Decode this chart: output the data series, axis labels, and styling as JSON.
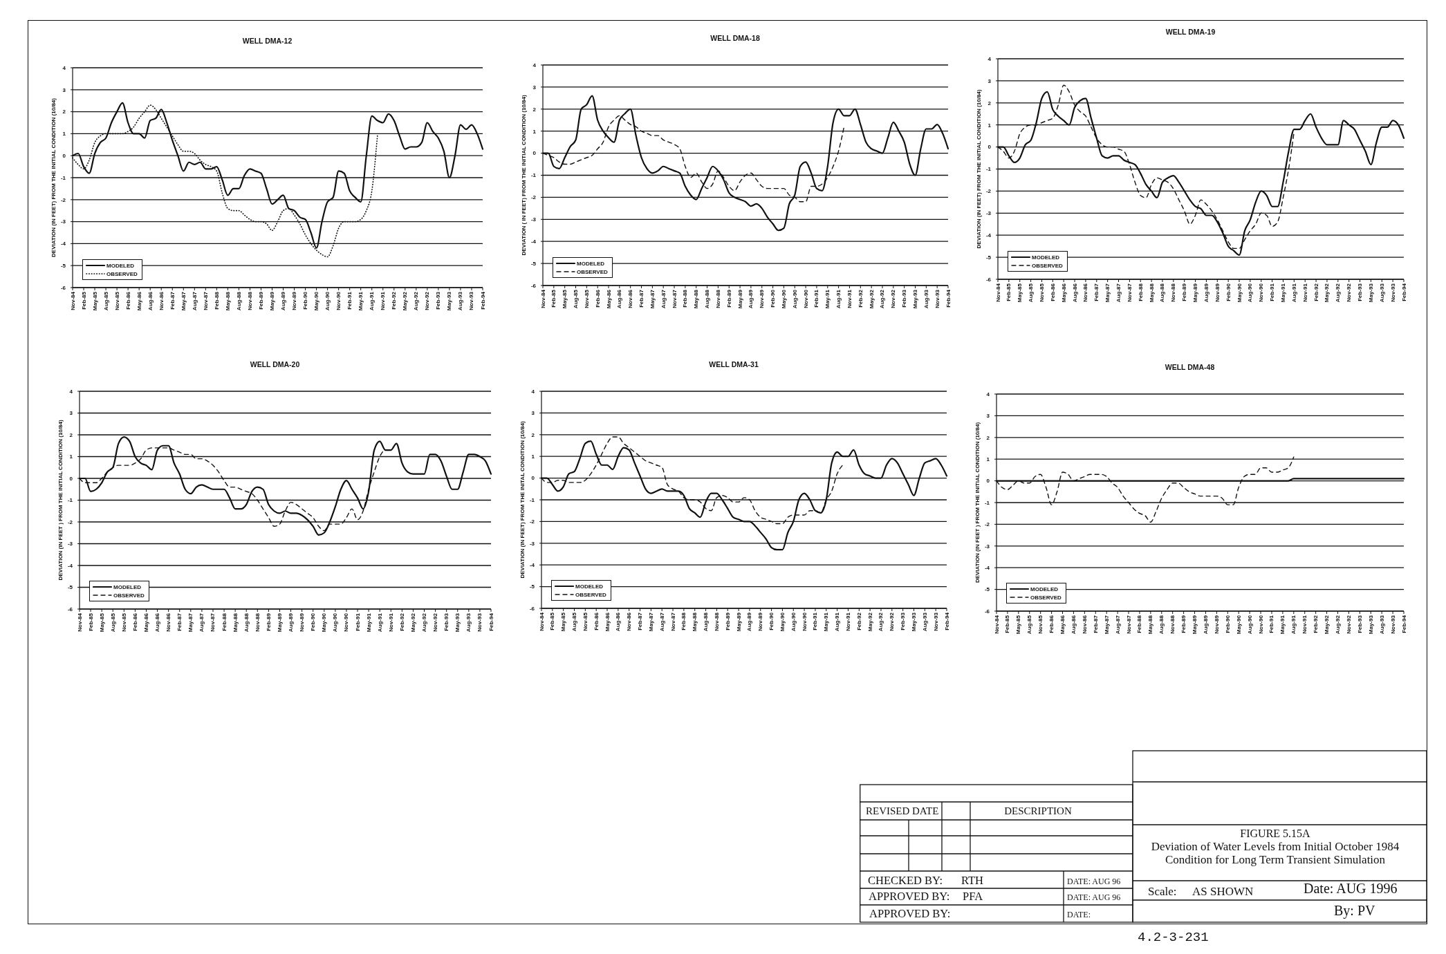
{
  "chart_data": [
    {
      "type": "line",
      "title": "WELL DMA-12",
      "ylabel": "DEVIATION (IN FEET) FROM THE INITIAL CONDITION (10/84)",
      "categories": [
        "Nov-84",
        null,
        "Feb-85",
        null,
        "May-85",
        null,
        "Aug-85",
        null,
        "Nov-85",
        null,
        "Feb-86",
        null,
        "May-86",
        null,
        "Aug-86",
        null,
        "Nov-86",
        null,
        "Feb-87",
        null,
        "May-87",
        null,
        "Aug-87",
        null,
        "Nov-87",
        null,
        "Feb-88",
        null,
        "May-88",
        null,
        "Aug-88",
        null,
        "Nov-88",
        null,
        "Feb-89",
        null,
        "May-89",
        null,
        "Aug-89",
        null,
        "Nov-89",
        null,
        "Feb-90",
        null,
        "May-90",
        null,
        "Aug-90",
        null,
        "Nov-90",
        null,
        "Feb-91",
        null,
        "May-91",
        null,
        "Aug-91",
        null,
        "Nov-91",
        null,
        "Feb-92",
        null,
        "May-92",
        null,
        "Aug-92",
        null,
        "Nov-92",
        null,
        "Feb-93",
        null,
        "May-93",
        null,
        "Aug-93",
        null,
        "Nov-93",
        null,
        "Feb-94"
      ],
      "ylim": [
        -6,
        4
      ],
      "yticks": [
        -6,
        -5,
        -4,
        -3,
        -2,
        -1,
        0,
        1,
        2,
        3,
        4
      ],
      "grid": "y",
      "legend": "bottom left",
      "marker": "none",
      "series": [
        {
          "name": "MODELED",
          "color": "#111111",
          "line_style": "solid",
          "values": [
            0.0,
            0.1,
            -0.5,
            -0.8,
            0.1,
            0.6,
            0.8,
            1.5,
            2.0,
            2.4,
            1.5,
            1.0,
            1.0,
            0.8,
            1.6,
            1.7,
            2.1,
            1.5,
            0.7,
            0.0,
            -0.7,
            -0.3,
            -0.4,
            -0.3,
            -0.6,
            -0.6,
            -0.5,
            -1.1,
            -1.8,
            -1.5,
            -1.5,
            -0.9,
            -0.6,
            -0.7,
            -0.8,
            -1.5,
            -2.2,
            -2.0,
            -1.8,
            -2.4,
            -2.5,
            -2.8,
            -2.9,
            -3.5,
            -4.2,
            -3.0,
            -2.1,
            -1.9,
            -0.7,
            -0.8,
            -1.6,
            -1.9,
            -2.1,
            0.0,
            1.8,
            1.6,
            1.5,
            1.9,
            1.6,
            0.9,
            0.3,
            0.4,
            0.4,
            0.6,
            1.5,
            1.1,
            0.8,
            0.2,
            -1.0,
            0.0,
            1.4,
            1.2,
            1.4,
            1.0,
            0.3
          ]
        },
        {
          "name": "OBSERVED",
          "color": "#111111",
          "line_style": "dotted",
          "values": [
            -0.1,
            -0.4,
            -0.6,
            -0.2,
            0.6,
            0.9,
            1.0,
            1.0,
            1.0,
            1.0,
            1.1,
            1.3,
            1.7,
            2.0,
            2.3,
            2.1,
            1.7,
            1.3,
            0.9,
            0.5,
            0.2,
            0.2,
            0.1,
            -0.2,
            -0.4,
            -0.5,
            -0.7,
            -1.7,
            -2.4,
            -2.5,
            -2.5,
            -2.7,
            -2.9,
            -3.0,
            -3.0,
            -3.1,
            -3.4,
            -3.0,
            -2.5,
            -2.4,
            -2.7,
            -3.1,
            -3.6,
            -4.0,
            -4.3,
            -4.5,
            -4.6,
            -4.1,
            -3.3,
            -3.0,
            -3.0,
            -3.0,
            -2.9,
            -2.5,
            -1.6,
            0.9,
            null,
            null,
            null,
            null,
            null,
            null,
            null,
            null,
            null,
            null,
            null,
            null,
            null,
            null,
            null,
            null,
            null,
            null,
            null
          ]
        }
      ]
    },
    {
      "type": "line",
      "title": "WELL DMA-18",
      "ylabel": "DEVIATION ( IN FEET) FROM THE INITIAL CONDITION (10/84)",
      "categories": [
        "Nov-84",
        null,
        "Feb-85",
        null,
        "May-85",
        null,
        "Aug-85",
        null,
        "Nov-85",
        null,
        "Feb-86",
        null,
        "May-86",
        null,
        "Aug-86",
        null,
        "Nov-86",
        null,
        "Feb-87",
        null,
        "May-87",
        null,
        "Aug-87",
        null,
        "Nov-87",
        null,
        "Feb-88",
        null,
        "May-88",
        null,
        "Aug-88",
        null,
        "Nov-88",
        null,
        "Feb-89",
        null,
        "May-89",
        null,
        "Aug-89",
        null,
        "Nov-89",
        null,
        "Feb-90",
        null,
        "May-90",
        null,
        "Aug-90",
        null,
        "Nov-90",
        null,
        "Feb-91",
        null,
        "May-91",
        null,
        "Aug-91",
        null,
        "Nov-91",
        null,
        "Feb-92",
        null,
        "May-92",
        null,
        "Aug-92",
        null,
        "Nov-92",
        null,
        "Feb-93",
        null,
        "May-93",
        null,
        "Aug-93",
        null,
        "Nov-93",
        null,
        "Feb-94"
      ],
      "ylim": [
        -6,
        4
      ],
      "yticks": [
        -6,
        -5,
        -4,
        -3,
        -2,
        -1,
        0,
        1,
        2,
        3,
        4
      ],
      "grid": "y",
      "legend": "bottom left",
      "marker": "none",
      "series": [
        {
          "name": "MODELED",
          "color": "#111111",
          "line_style": "solid",
          "values": [
            0.0,
            0.0,
            -0.6,
            -0.7,
            -0.2,
            0.3,
            0.6,
            2.0,
            2.2,
            2.6,
            1.5,
            1.0,
            0.7,
            0.5,
            1.5,
            1.8,
            2.0,
            0.8,
            -0.2,
            -0.7,
            -0.9,
            -0.8,
            -0.6,
            -0.7,
            -0.8,
            -0.9,
            -1.5,
            -1.9,
            -2.1,
            -1.6,
            -1.1,
            -0.6,
            -0.8,
            -1.2,
            -1.8,
            -2.0,
            -2.1,
            -2.2,
            -2.4,
            -2.3,
            -2.5,
            -2.9,
            -3.2,
            -3.5,
            -3.4,
            -2.3,
            -1.9,
            -0.6,
            -0.4,
            -0.9,
            -1.6,
            -1.7,
            -0.6,
            1.4,
            2.0,
            1.7,
            1.7,
            2.0,
            1.3,
            0.5,
            0.2,
            0.1,
            0.0,
            0.7,
            1.4,
            1.0,
            0.5,
            -0.5,
            -1.0,
            0.2,
            1.1,
            1.1,
            1.3,
            0.9,
            0.2
          ]
        },
        {
          "name": "OBSERVED",
          "color": "#111111",
          "line_style": "dashed",
          "values": [
            0.0,
            -0.1,
            -0.2,
            -0.4,
            -0.5,
            -0.5,
            -0.4,
            -0.3,
            -0.2,
            -0.1,
            0.2,
            0.5,
            1.2,
            1.5,
            1.7,
            1.5,
            1.3,
            1.2,
            1.0,
            0.9,
            0.8,
            0.8,
            0.6,
            0.5,
            0.4,
            0.2,
            -0.6,
            -1.1,
            -0.9,
            -1.3,
            -1.6,
            -1.4,
            -0.8,
            -1.1,
            -1.5,
            -1.7,
            -1.3,
            -1.0,
            -0.9,
            -1.2,
            -1.5,
            -1.6,
            -1.6,
            -1.6,
            -1.6,
            -1.9,
            -2.0,
            -2.2,
            -2.2,
            -1.5,
            -1.5,
            -1.4,
            -1.1,
            -0.6,
            0.1,
            1.2,
            null,
            null,
            null,
            null,
            null,
            null,
            null,
            null,
            null,
            null,
            null,
            null,
            null,
            null,
            null,
            null,
            null,
            null,
            null
          ]
        }
      ]
    },
    {
      "type": "line",
      "title": "WELL DMA-19",
      "ylabel": "DEVIATION (IN FEET) FROM THE INITIAL CONDITION (10/84)",
      "categories": [
        "Nov-84",
        null,
        "Feb-85",
        null,
        "May-85",
        null,
        "Aug-85",
        null,
        "Nov-85",
        null,
        "Feb-86",
        null,
        "May-86",
        null,
        "Aug-86",
        null,
        "Nov-86",
        null,
        "Feb-87",
        null,
        "May-87",
        null,
        "Aug-87",
        null,
        "Nov-87",
        null,
        "Feb-88",
        null,
        "May-88",
        null,
        "Aug-88",
        null,
        "Nov-88",
        null,
        "Feb-89",
        null,
        "May-89",
        null,
        "Aug-89",
        null,
        "Nov-89",
        null,
        "Feb-90",
        null,
        "May-90",
        null,
        "Aug-90",
        null,
        "Nov-90",
        null,
        "Feb-91",
        null,
        "May-91",
        null,
        "Aug-91",
        null,
        "Nov-91",
        null,
        "Feb-92",
        null,
        "May-92",
        null,
        "Aug-92",
        null,
        "Nov-92",
        null,
        "Feb-93",
        null,
        "May-93",
        null,
        "Aug-93",
        null,
        "Nov-93",
        null,
        "Feb-94"
      ],
      "ylim": [
        -6,
        4
      ],
      "yticks": [
        -6,
        -5,
        -4,
        -3,
        -2,
        -1,
        0,
        1,
        2,
        3,
        4
      ],
      "grid": "y",
      "legend": "bottom left",
      "marker": "none",
      "series": [
        {
          "name": "MODELED",
          "color": "#111111",
          "line_style": "solid",
          "values": [
            0.0,
            0.0,
            -0.4,
            -0.7,
            -0.5,
            0.1,
            0.3,
            1.1,
            2.2,
            2.5,
            1.7,
            1.4,
            1.2,
            1.0,
            1.8,
            2.1,
            2.2,
            1.3,
            0.4,
            -0.4,
            -0.5,
            -0.4,
            -0.4,
            -0.6,
            -0.7,
            -0.8,
            -1.2,
            -1.7,
            -2.0,
            -2.3,
            -1.6,
            -1.4,
            -1.3,
            -1.6,
            -2.0,
            -2.4,
            -2.7,
            -2.8,
            -3.1,
            -3.1,
            -3.4,
            -3.9,
            -4.5,
            -4.7,
            -4.9,
            -3.8,
            -3.3,
            -2.5,
            -2.0,
            -2.2,
            -2.7,
            -2.7,
            -1.6,
            -0.2,
            0.8,
            0.8,
            1.2,
            1.5,
            0.9,
            0.4,
            0.1,
            0.1,
            0.1,
            1.2,
            1.0,
            0.8,
            0.3,
            -0.2,
            -0.8,
            0.2,
            0.9,
            0.9,
            1.2,
            1.0,
            0.4
          ]
        },
        {
          "name": "OBSERVED",
          "color": "#111111",
          "line_style": "dashed",
          "values": [
            0.0,
            -0.2,
            -0.5,
            -0.2,
            0.6,
            0.9,
            1.0,
            1.0,
            1.1,
            1.2,
            1.3,
            1.9,
            2.8,
            2.5,
            1.9,
            1.6,
            1.4,
            0.9,
            0.4,
            0.1,
            0.0,
            0.0,
            -0.1,
            -0.2,
            -0.8,
            -1.6,
            -2.2,
            -2.3,
            -1.7,
            -1.4,
            -1.5,
            -1.6,
            -1.9,
            -2.4,
            -2.9,
            -3.5,
            -3.1,
            -2.4,
            -2.6,
            -2.9,
            -3.3,
            -3.8,
            -4.3,
            -4.6,
            -4.6,
            -4.2,
            -3.8,
            -3.5,
            -3.0,
            -3.1,
            -3.6,
            -3.4,
            -2.3,
            -1.0,
            0.7,
            null,
            null,
            null,
            null,
            null,
            null,
            null,
            null,
            null,
            null,
            null,
            null,
            null,
            null,
            null,
            null,
            null,
            null,
            null,
            null
          ]
        }
      ]
    },
    {
      "type": "line",
      "title": "WELL DMA-20",
      "ylabel": "DEVIATION (IN FEET ) FROM THE INITIAL CONDITION (10/84)",
      "categories": [
        "Nov-84",
        null,
        "Feb-85",
        null,
        "May-85",
        null,
        "Aug-85",
        null,
        "Nov-85",
        null,
        "Feb-86",
        null,
        "May-86",
        null,
        "Aug-86",
        null,
        "Nov-86",
        null,
        "Feb-87",
        null,
        "May-87",
        null,
        "Aug-87",
        null,
        "Nov-87",
        null,
        "Feb-88",
        null,
        "May-88",
        null,
        "Aug-88",
        null,
        "Nov-88",
        null,
        "Feb-89",
        null,
        "May-89",
        null,
        "Aug-89",
        null,
        "Nov-89",
        null,
        "Feb-90",
        null,
        "May-90",
        null,
        "Aug-90",
        null,
        "Nov-90",
        null,
        "Feb-91",
        null,
        "May-91",
        null,
        "Aug-91",
        null,
        "Nov-91",
        null,
        "Feb-92",
        null,
        "May-92",
        null,
        "Aug-92",
        null,
        "Nov-92",
        null,
        "Feb-93",
        null,
        "May-93",
        null,
        "Aug-93",
        null,
        "Nov-93",
        null,
        "Feb-94"
      ],
      "ylim": [
        -6,
        4
      ],
      "yticks": [
        -6,
        -5,
        -4,
        -3,
        -2,
        -1,
        0,
        1,
        2,
        3,
        4
      ],
      "grid": "y",
      "legend": "bottom left",
      "marker": "none",
      "series": [
        {
          "name": "MODELED",
          "color": "#111111",
          "line_style": "solid",
          "values": [
            0.0,
            0.0,
            -0.6,
            -0.5,
            -0.2,
            0.3,
            0.5,
            1.6,
            1.9,
            1.7,
            1.0,
            0.7,
            0.6,
            0.4,
            1.3,
            1.5,
            1.5,
            0.7,
            0.2,
            -0.5,
            -0.7,
            -0.4,
            -0.3,
            -0.4,
            -0.5,
            -0.5,
            -0.5,
            -0.9,
            -1.4,
            -1.4,
            -1.2,
            -0.6,
            -0.4,
            -0.5,
            -1.2,
            -1.5,
            -1.6,
            -1.5,
            -1.6,
            -1.6,
            -1.7,
            -1.9,
            -2.2,
            -2.6,
            -2.5,
            -2.0,
            -1.3,
            -0.5,
            -0.1,
            -0.5,
            -0.9,
            -1.4,
            -0.6,
            1.3,
            1.7,
            1.3,
            1.3,
            1.6,
            0.7,
            0.3,
            0.2,
            0.2,
            0.2,
            1.1,
            1.1,
            0.8,
            0.1,
            -0.5,
            -0.5,
            0.3,
            1.1,
            1.1,
            1.0,
            0.8,
            0.2
          ]
        },
        {
          "name": "OBSERVED",
          "color": "#111111",
          "line_style": "dashed",
          "values": [
            0.0,
            -0.2,
            -0.2,
            -0.2,
            0.0,
            0.3,
            0.5,
            0.6,
            0.6,
            0.6,
            0.7,
            0.9,
            1.3,
            1.4,
            1.4,
            1.4,
            1.4,
            1.3,
            1.2,
            1.1,
            1.1,
            0.9,
            0.9,
            0.8,
            0.6,
            0.3,
            -0.1,
            -0.4,
            -0.4,
            -0.5,
            -0.6,
            -0.7,
            -1.0,
            -1.4,
            -1.8,
            -2.2,
            -2.1,
            -1.5,
            -1.1,
            -1.2,
            -1.4,
            -1.6,
            -1.8,
            -2.2,
            -2.4,
            -2.1,
            -2.1,
            -2.1,
            -1.8,
            -1.4,
            -1.9,
            -1.5,
            -0.5,
            0.3,
            1.0,
            1.3,
            1.3,
            null,
            null,
            null,
            null,
            null,
            null,
            null,
            null,
            null,
            null,
            null,
            null,
            null,
            null,
            null,
            null,
            null,
            null
          ]
        }
      ]
    },
    {
      "type": "line",
      "title": "WELL DMA-31",
      "ylabel": "DEVIATION (IN FEET) FROM THE INITAL CONDITION (10/84)",
      "categories": [
        "Nov-84",
        null,
        "Feb-85",
        null,
        "May-85",
        null,
        "Aug-85",
        null,
        "Nov-85",
        null,
        "Feb-86",
        null,
        "May-86",
        null,
        "Aug-86",
        null,
        "Nov-86",
        null,
        "Feb-87",
        null,
        "May-87",
        null,
        "Aug-87",
        null,
        "Nov-87",
        null,
        "Feb-88",
        null,
        "May-88",
        null,
        "Aug-88",
        null,
        "Nov-88",
        null,
        "Feb-89",
        null,
        "May-89",
        null,
        "Aug-89",
        null,
        "Nov-89",
        null,
        "Feb-90",
        null,
        "May-90",
        null,
        "Aug-90",
        null,
        "Nov-90",
        null,
        "Feb-91",
        null,
        "May-91",
        null,
        "Aug-91",
        null,
        "Nov-91",
        null,
        "Feb-92",
        null,
        "May-92",
        null,
        "Aug-92",
        null,
        "Nov-92",
        null,
        "Feb-93",
        null,
        "May-93",
        null,
        "Aug-93",
        null,
        "Nov-93",
        null,
        "Feb-94"
      ],
      "ylim": [
        -6,
        4
      ],
      "yticks": [
        -6,
        -5,
        -4,
        -3,
        -2,
        -1,
        0,
        1,
        2,
        3,
        4
      ],
      "grid": "y",
      "legend": "bottom left",
      "marker": "none",
      "series": [
        {
          "name": "MODELED",
          "color": "#111111",
          "line_style": "solid",
          "values": [
            0.0,
            0.0,
            -0.3,
            -0.6,
            -0.4,
            0.2,
            0.3,
            0.9,
            1.6,
            1.7,
            1.1,
            0.6,
            0.6,
            0.4,
            1.0,
            1.4,
            1.3,
            0.7,
            0.1,
            -0.5,
            -0.7,
            -0.6,
            -0.5,
            -0.6,
            -0.6,
            -0.6,
            -0.8,
            -1.4,
            -1.6,
            -1.8,
            -1.1,
            -0.7,
            -0.7,
            -1.0,
            -1.4,
            -1.8,
            -1.9,
            -2.0,
            -2.0,
            -2.2,
            -2.5,
            -2.8,
            -3.2,
            -3.3,
            -3.3,
            -2.5,
            -2.0,
            -1.0,
            -0.7,
            -1.0,
            -1.5,
            -1.6,
            -1.0,
            0.7,
            1.2,
            1.0,
            1.0,
            1.3,
            0.6,
            0.2,
            0.1,
            0.0,
            0.0,
            0.6,
            0.9,
            0.7,
            0.2,
            -0.3,
            -0.8,
            0.0,
            0.7,
            0.8,
            0.9,
            0.6,
            0.1
          ]
        },
        {
          "name": "OBSERVED",
          "color": "#111111",
          "line_style": "dashed",
          "values": [
            0.0,
            -0.2,
            -0.2,
            -0.1,
            -0.1,
            -0.2,
            -0.2,
            -0.2,
            -0.1,
            0.2,
            0.6,
            1.1,
            1.6,
            1.9,
            1.9,
            1.6,
            1.4,
            1.2,
            1.0,
            0.8,
            0.7,
            0.6,
            0.5,
            -0.3,
            -0.5,
            -0.6,
            -0.9,
            -1.0,
            -1.0,
            -1.1,
            -1.4,
            -1.5,
            -0.9,
            -0.8,
            -0.9,
            -1.1,
            -1.1,
            -0.9,
            -1.0,
            -1.5,
            -1.8,
            -1.9,
            -2.0,
            -2.1,
            -2.1,
            -1.8,
            -1.7,
            -1.7,
            -1.7,
            -1.5,
            -1.5,
            -1.6,
            -1.0,
            -0.6,
            0.2,
            0.6,
            null,
            null,
            null,
            null,
            null,
            null,
            null,
            null,
            null,
            null,
            null,
            null,
            null,
            null,
            null,
            null,
            null,
            null,
            null
          ]
        }
      ]
    },
    {
      "type": "line",
      "title": "WELL DMA-48",
      "ylabel": "DEVIATION (IN FEET ) FROM THE INITIAL CONDITION (10/84)",
      "categories": [
        "Nov-84",
        null,
        "Feb-85",
        null,
        "May-85",
        null,
        "Aug-85",
        null,
        "Nov-85",
        null,
        "Feb-86",
        null,
        "May-86",
        null,
        "Aug-86",
        null,
        "Nov-86",
        null,
        "Feb-87",
        null,
        "May-87",
        null,
        "Aug-87",
        null,
        "Nov-87",
        null,
        "Feb-88",
        null,
        "May-88",
        null,
        "Aug-88",
        null,
        "Nov-88",
        null,
        "Feb-89",
        null,
        "May-89",
        null,
        "Aug-89",
        null,
        "Nov-89",
        null,
        "Feb-90",
        null,
        "May-90",
        null,
        "Aug-90",
        null,
        "Nov-90",
        null,
        "Feb-91",
        null,
        "May-91",
        null,
        "Aug-91",
        null,
        "Nov-91",
        null,
        "Feb-92",
        null,
        "May-92",
        null,
        "Aug-92",
        null,
        "Nov-92",
        null,
        "Feb-93",
        null,
        "May-93",
        null,
        "Aug-93",
        null,
        "Nov-93",
        null,
        "Feb-94"
      ],
      "ylim": [
        -6,
        4
      ],
      "yticks": [
        -6,
        -5,
        -4,
        -3,
        -2,
        -1,
        0,
        1,
        2,
        3,
        4
      ],
      "grid": "y",
      "legend": "bottom left",
      "marker": "none",
      "series": [
        {
          "name": "MODELED",
          "color": "#111111",
          "line_style": "solid",
          "values": [
            0.0,
            0.0,
            0.0,
            0.0,
            0.0,
            0.0,
            0.0,
            0.0,
            0.0,
            0.0,
            0.0,
            0.0,
            0.0,
            0.0,
            0.0,
            0.0,
            0.0,
            0.0,
            0.0,
            0.0,
            0.0,
            0.0,
            0.0,
            0.0,
            0.0,
            0.0,
            0.0,
            0.0,
            0.0,
            0.0,
            0.0,
            0.0,
            0.0,
            0.0,
            0.0,
            0.0,
            0.0,
            0.0,
            0.0,
            0.0,
            0.0,
            0.0,
            0.0,
            0.0,
            0.0,
            0.0,
            0.0,
            0.0,
            0.0,
            0.0,
            0.0,
            0.0,
            0.0,
            0.0,
            0.1,
            0.1,
            0.1,
            0.1,
            0.1,
            0.1,
            0.1,
            0.1,
            0.1,
            0.1,
            0.1,
            0.1,
            0.1,
            0.1,
            0.1,
            0.1,
            0.1,
            0.1,
            0.1,
            0.1,
            0.1
          ]
        },
        {
          "name": "OBSERVED",
          "color": "#111111",
          "line_style": "dashed",
          "values": [
            0.0,
            -0.3,
            -0.4,
            -0.2,
            0.0,
            -0.1,
            -0.1,
            0.2,
            0.3,
            -0.3,
            -1.1,
            -0.5,
            0.4,
            0.3,
            0.0,
            0.1,
            0.2,
            0.3,
            0.3,
            0.3,
            0.2,
            -0.1,
            -0.3,
            -0.7,
            -1.0,
            -1.3,
            -1.5,
            -1.6,
            -1.9,
            -1.4,
            -0.8,
            -0.4,
            -0.1,
            -0.1,
            -0.3,
            -0.5,
            -0.6,
            -0.7,
            -0.7,
            -0.7,
            -0.7,
            -0.8,
            -1.1,
            -1.1,
            -0.3,
            0.2,
            0.3,
            0.3,
            0.6,
            0.6,
            0.4,
            0.4,
            0.5,
            0.6,
            1.1,
            null,
            null,
            null,
            null,
            null,
            null,
            null,
            null,
            null,
            null,
            null,
            null,
            null,
            null,
            null,
            null,
            null,
            null,
            null,
            null
          ]
        }
      ]
    },
    {
      "type": "other",
      "title": "FIGURE 5.15A",
      "subtitle": "Deviation of Water Levels from Initial October 1984 Condition for Long Term Transient Simulation",
      "annotations": [
        "REVISED",
        "DATE",
        "DESCRIPTION",
        "CHECKED BY:",
        "RTH",
        "DATE: AUG 96",
        "APPROVED BY:",
        "PFA",
        "DATE: AUG 96",
        "APPROVED BY:",
        "DATE:",
        "Scale:",
        "AS SHOWN",
        "Date: AUG 1996",
        "By: PV",
        "4.2-3-231"
      ]
    }
  ]
}
